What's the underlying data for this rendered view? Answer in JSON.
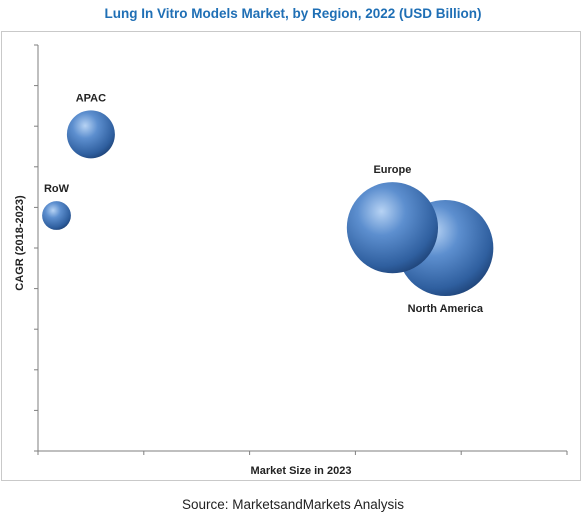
{
  "chart_data": {
    "type": "bubble",
    "title": "Lung In Vitro Models Market, by Region, 2022 (USD Billion)",
    "xlabel": "Market Size in 2023",
    "ylabel": "CAGR (2018-2023)",
    "source": "Source: MarketsandMarkets Analysis",
    "xlim": [
      0,
      10
    ],
    "ylim": [
      0,
      10
    ],
    "grid": false,
    "series": [
      {
        "name": "RoW",
        "x": 0.35,
        "y": 5.8,
        "size": 0.6,
        "label_position": "above"
      },
      {
        "name": "APAC",
        "x": 1.0,
        "y": 7.8,
        "size": 1.0,
        "label_position": "above"
      },
      {
        "name": "North America",
        "x": 7.7,
        "y": 5.0,
        "size": 2.0,
        "label_position": "below"
      },
      {
        "name": "Europe",
        "x": 6.7,
        "y": 5.5,
        "size": 1.9,
        "label_position": "above"
      }
    ],
    "bubble_color": "#3d6fb0"
  }
}
